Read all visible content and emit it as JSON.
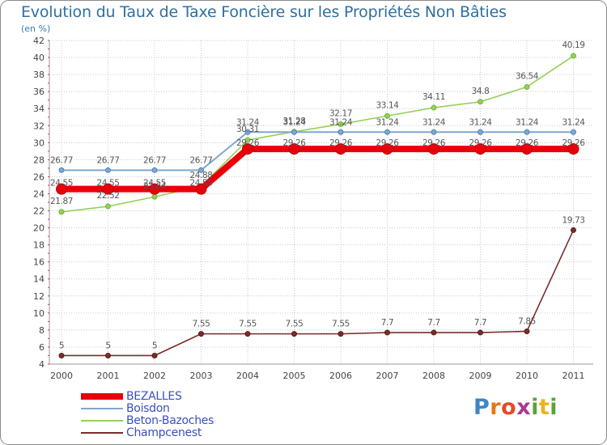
{
  "title": "Evolution du Taux de Taxe Foncière sur les Propriétés Non Bâties",
  "subtitle": "(en %)",
  "logo": "Proxiti",
  "colors": {
    "frame": "#8a8a8a",
    "grid": "#c8c8c8",
    "axis_text": "#444444",
    "value_text": "#555555"
  },
  "chart_data": {
    "type": "line",
    "title": "Evolution du Taux de Taxe Foncière sur les Propriétés Non Bâties",
    "ylabel": "(en %)",
    "xlabel": "",
    "x": [
      "2000",
      "2001",
      "2002",
      "2003",
      "2004",
      "2005",
      "2006",
      "2007",
      "2008",
      "2009",
      "2010",
      "2011"
    ],
    "ylim": [
      4,
      42
    ],
    "yticks": [
      4,
      6,
      8,
      10,
      12,
      14,
      16,
      18,
      20,
      22,
      24,
      26,
      28,
      30,
      32,
      34,
      36,
      38,
      40,
      42
    ],
    "grid": true,
    "legend_position": "bottom-left",
    "series": [
      {
        "name": "BEZALLES",
        "color": "#e8000b",
        "values": [
          24.55,
          24.55,
          24.55,
          24.55,
          29.26,
          29.26,
          29.26,
          29.26,
          29.26,
          29.26,
          29.26,
          29.26
        ],
        "labels": [
          "24.55",
          "24.55",
          "24.55",
          "24.55",
          "29.26",
          "29.26",
          "29.26",
          "29.26",
          "29.26",
          "29.26",
          "29.26",
          "29.26"
        ]
      },
      {
        "name": "Boisdon",
        "color": "#7fa7cf",
        "values": [
          26.77,
          26.77,
          26.77,
          26.77,
          31.24,
          31.24,
          31.24,
          31.24,
          31.24,
          31.24,
          31.24,
          31.24
        ],
        "labels": [
          "26.77",
          "26.77",
          "26.77",
          "26.77",
          "31.24",
          "31.24",
          "31.24",
          "31.24",
          "31.24",
          "31.24",
          "31.24",
          "31.24"
        ]
      },
      {
        "name": "Beton-Bazoches",
        "color": "#95d05a",
        "values": [
          21.87,
          22.52,
          23.64,
          24.88,
          30.31,
          31.28,
          32.17,
          33.14,
          34.11,
          34.8,
          36.54,
          40.19
        ],
        "labels": [
          "21.87",
          "22.52",
          "23.64",
          "24.88",
          "30.31",
          "31.28",
          "32.17",
          "33.14",
          "34.11",
          "34.8",
          "36.54",
          "40.19"
        ]
      },
      {
        "name": "Champcenest",
        "color": "#7a2d2d",
        "values": [
          5,
          5,
          5,
          7.55,
          7.55,
          7.55,
          7.55,
          7.7,
          7.7,
          7.7,
          7.85,
          19.73
        ],
        "labels": [
          "5",
          "5",
          "5",
          "7.55",
          "7.55",
          "7.55",
          "7.55",
          "7.7",
          "7.7",
          "7.7",
          "7.85",
          "19.73"
        ]
      }
    ]
  }
}
